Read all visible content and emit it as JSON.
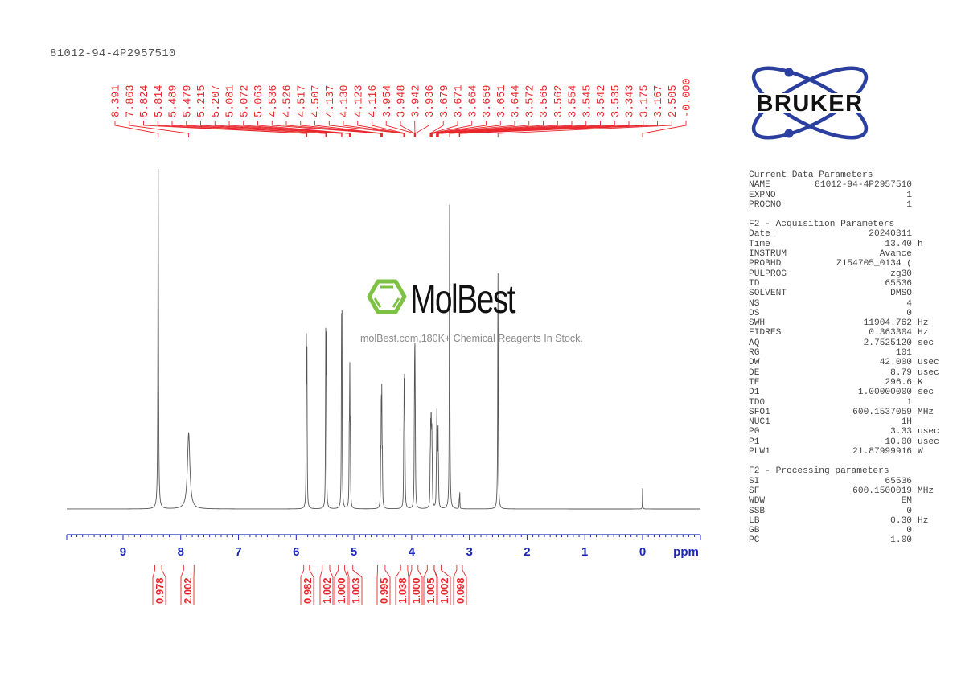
{
  "title": "81012-94-4P2957510",
  "watermark": {
    "brand": "MolBest",
    "tagline": "molBest.com,180K+ Chemical Reagents In Stock.",
    "brand_color": "#7dc242"
  },
  "logo": {
    "text": "BRUKER",
    "orbit_color": "#2b3f9e"
  },
  "colors": {
    "peak_labels": "#e8262b",
    "axis": "#1c27b5",
    "spectrum": "#555555"
  },
  "parameters": {
    "sections": [
      {
        "title": "Current Data Parameters",
        "rows": [
          {
            "key": "NAME",
            "value": "81012-94-4P2957510",
            "unit": ""
          },
          {
            "key": "EXPNO",
            "value": "1",
            "unit": ""
          },
          {
            "key": "PROCNO",
            "value": "1",
            "unit": ""
          }
        ]
      },
      {
        "title": "F2 - Acquisition Parameters",
        "rows": [
          {
            "key": "Date_",
            "value": "20240311",
            "unit": ""
          },
          {
            "key": "Time",
            "value": "13.40",
            "unit": "h"
          },
          {
            "key": "INSTRUM",
            "value": "Avance",
            "unit": ""
          },
          {
            "key": "PROBHD",
            "value": "Z154705_0134 (",
            "unit": ""
          },
          {
            "key": "PULPROG",
            "value": "zg30",
            "unit": ""
          },
          {
            "key": "TD",
            "value": "65536",
            "unit": ""
          },
          {
            "key": "SOLVENT",
            "value": "DMSO",
            "unit": ""
          },
          {
            "key": "NS",
            "value": "4",
            "unit": ""
          },
          {
            "key": "DS",
            "value": "0",
            "unit": ""
          },
          {
            "key": "SWH",
            "value": "11904.762",
            "unit": "Hz"
          },
          {
            "key": "FIDRES",
            "value": "0.363304",
            "unit": "Hz"
          },
          {
            "key": "AQ",
            "value": "2.7525120",
            "unit": "sec"
          },
          {
            "key": "RG",
            "value": "101",
            "unit": ""
          },
          {
            "key": "DW",
            "value": "42.000",
            "unit": "usec"
          },
          {
            "key": "DE",
            "value": "8.79",
            "unit": "usec"
          },
          {
            "key": "TE",
            "value": "296.6",
            "unit": "K"
          },
          {
            "key": "D1",
            "value": "1.00000000",
            "unit": "sec"
          },
          {
            "key": "TD0",
            "value": "1",
            "unit": ""
          },
          {
            "key": "SFO1",
            "value": "600.1537059",
            "unit": "MHz"
          },
          {
            "key": "NUC1",
            "value": "1H",
            "unit": ""
          },
          {
            "key": "P0",
            "value": "3.33",
            "unit": "usec"
          },
          {
            "key": "P1",
            "value": "10.00",
            "unit": "usec"
          },
          {
            "key": "PLW1",
            "value": "21.87999916",
            "unit": "W"
          }
        ]
      },
      {
        "title": "F2 - Processing parameters",
        "rows": [
          {
            "key": "SI",
            "value": "65536",
            "unit": ""
          },
          {
            "key": "SF",
            "value": "600.1500019",
            "unit": "MHz"
          },
          {
            "key": "WDW",
            "value": "EM",
            "unit": ""
          },
          {
            "key": "SSB",
            "value": "0",
            "unit": ""
          },
          {
            "key": "LB",
            "value": "0.30",
            "unit": "Hz"
          },
          {
            "key": "GB",
            "value": "0",
            "unit": ""
          },
          {
            "key": "PC",
            "value": "1.00",
            "unit": ""
          }
        ]
      }
    ]
  },
  "chart_data": {
    "type": "line",
    "title": "81012-94-4P2957510",
    "xlabel": "ppm",
    "ylabel": "",
    "xlim": [
      10.0,
      -1.0
    ],
    "x_reversed": true,
    "grid": false,
    "x_ticks": [
      9,
      8,
      7,
      6,
      5,
      4,
      3,
      2,
      1,
      0
    ],
    "x_tick_labels": [
      "9",
      "8",
      "7",
      "6",
      "5",
      "4",
      "3",
      "2",
      "1",
      "0"
    ],
    "peak_labels": [
      "8.391",
      "7.863",
      "5.824",
      "5.814",
      "5.489",
      "5.479",
      "5.215",
      "5.207",
      "5.081",
      "5.072",
      "5.063",
      "4.536",
      "4.526",
      "4.517",
      "4.507",
      "4.137",
      "4.130",
      "4.123",
      "4.116",
      "3.954",
      "3.948",
      "3.942",
      "3.936",
      "3.679",
      "3.671",
      "3.664",
      "3.659",
      "3.651",
      "3.644",
      "3.572",
      "3.565",
      "3.562",
      "3.554",
      "3.545",
      "3.542",
      "3.535",
      "3.343",
      "3.175",
      "3.167",
      "2.505",
      "-0.000"
    ],
    "peaks": [
      {
        "ppm": 8.391,
        "height": 1.0,
        "width": 0.006
      },
      {
        "ppm": 7.863,
        "height": 0.22,
        "width": 0.025
      },
      {
        "ppm": 5.824,
        "height": 0.45,
        "width": 0.004
      },
      {
        "ppm": 5.814,
        "height": 0.45,
        "width": 0.004
      },
      {
        "ppm": 5.489,
        "height": 0.46,
        "width": 0.004
      },
      {
        "ppm": 5.479,
        "height": 0.46,
        "width": 0.004
      },
      {
        "ppm": 5.215,
        "height": 0.48,
        "width": 0.004
      },
      {
        "ppm": 5.207,
        "height": 0.48,
        "width": 0.004
      },
      {
        "ppm": 5.081,
        "height": 0.19,
        "width": 0.004
      },
      {
        "ppm": 5.072,
        "height": 0.38,
        "width": 0.004
      },
      {
        "ppm": 5.063,
        "height": 0.19,
        "width": 0.004
      },
      {
        "ppm": 4.536,
        "height": 0.13,
        "width": 0.004
      },
      {
        "ppm": 4.526,
        "height": 0.29,
        "width": 0.004
      },
      {
        "ppm": 4.517,
        "height": 0.29,
        "width": 0.004
      },
      {
        "ppm": 4.507,
        "height": 0.13,
        "width": 0.004
      },
      {
        "ppm": 4.137,
        "height": 0.13,
        "width": 0.004
      },
      {
        "ppm": 4.13,
        "height": 0.28,
        "width": 0.004
      },
      {
        "ppm": 4.123,
        "height": 0.28,
        "width": 0.004
      },
      {
        "ppm": 4.116,
        "height": 0.13,
        "width": 0.004
      },
      {
        "ppm": 3.954,
        "height": 0.14,
        "width": 0.004
      },
      {
        "ppm": 3.948,
        "height": 0.32,
        "width": 0.004
      },
      {
        "ppm": 3.942,
        "height": 0.32,
        "width": 0.004
      },
      {
        "ppm": 3.936,
        "height": 0.14,
        "width": 0.004
      },
      {
        "ppm": 3.679,
        "height": 0.1,
        "width": 0.004
      },
      {
        "ppm": 3.671,
        "height": 0.18,
        "width": 0.004
      },
      {
        "ppm": 3.664,
        "height": 0.15,
        "width": 0.004
      },
      {
        "ppm": 3.659,
        "height": 0.15,
        "width": 0.004
      },
      {
        "ppm": 3.651,
        "height": 0.18,
        "width": 0.004
      },
      {
        "ppm": 3.644,
        "height": 0.1,
        "width": 0.004
      },
      {
        "ppm": 3.572,
        "height": 0.08,
        "width": 0.004
      },
      {
        "ppm": 3.565,
        "height": 0.14,
        "width": 0.004
      },
      {
        "ppm": 3.562,
        "height": 0.14,
        "width": 0.004
      },
      {
        "ppm": 3.554,
        "height": 0.12,
        "width": 0.004
      },
      {
        "ppm": 3.545,
        "height": 0.12,
        "width": 0.004
      },
      {
        "ppm": 3.542,
        "height": 0.12,
        "width": 0.004
      },
      {
        "ppm": 3.535,
        "height": 0.08,
        "width": 0.004
      },
      {
        "ppm": 3.343,
        "height": 0.89,
        "width": 0.005
      },
      {
        "ppm": 3.175,
        "height": 0.03,
        "width": 0.003
      },
      {
        "ppm": 3.167,
        "height": 0.05,
        "width": 0.003
      },
      {
        "ppm": 2.505,
        "height": 0.7,
        "width": 0.005
      },
      {
        "ppm": 0.0,
        "height": 0.06,
        "width": 0.003
      }
    ],
    "integrals": [
      {
        "from": 8.45,
        "to": 8.33,
        "value": "0.978"
      },
      {
        "from": 7.95,
        "to": 7.77,
        "value": "2.002"
      },
      {
        "from": 5.87,
        "to": 5.77,
        "value": "0.982"
      },
      {
        "from": 5.55,
        "to": 5.42,
        "value": "1.002"
      },
      {
        "from": 5.27,
        "to": 5.16,
        "value": "1.000"
      },
      {
        "from": 5.12,
        "to": 5.02,
        "value": "1.003"
      },
      {
        "from": 4.59,
        "to": 4.46,
        "value": "0.995"
      },
      {
        "from": 4.19,
        "to": 4.07,
        "value": "1.038"
      },
      {
        "from": 4.0,
        "to": 3.89,
        "value": "1.000"
      },
      {
        "from": 3.73,
        "to": 3.61,
        "value": "1.005"
      },
      {
        "from": 3.61,
        "to": 3.49,
        "value": "1.002"
      },
      {
        "from": 3.22,
        "to": 3.12,
        "value": "0.098"
      }
    ]
  }
}
